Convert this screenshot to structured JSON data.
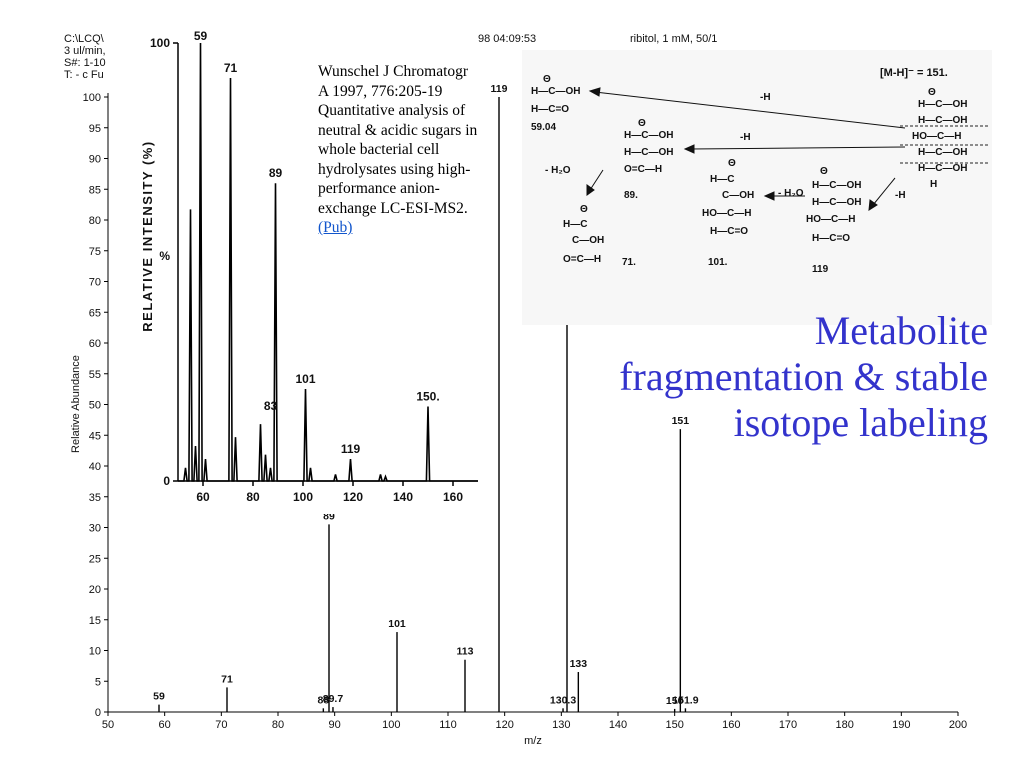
{
  "slide": {
    "title": "Metabolite fragmentation & stable isotope labeling"
  },
  "header": {
    "file": "C:\\LCQ\\",
    "flow": "3 ul/min,",
    "scan": "S#: 1-10",
    "filter": "T: - c Fu",
    "time": "98 04:09:53",
    "sample": "ribitol, 1 mM, 50/1"
  },
  "citation": {
    "text": "Wunschel J Chromatogr A 1997, 776:205-19 Quantitative analysis of neutral & acidic sugars in whole bacterial cell hydrolysates using high-performance anion-exchange LC-ESI-MS2.",
    "link": "(Pub)"
  },
  "structures": {
    "parent": "[M-H]⁻ = 151.",
    "loss_h": "-H",
    "loss_h2o": "- H₂O",
    "labels": [
      "59.04",
      "89.",
      "71.",
      "101.",
      "119"
    ]
  },
  "chart_data": [
    {
      "type": "bar",
      "name": "main-spectrum",
      "xlabel": "m/z",
      "ylabel": "Relative Abundance",
      "xlim": [
        50,
        200
      ],
      "ylim": [
        0,
        100
      ],
      "xticks": [
        50,
        60,
        70,
        80,
        90,
        100,
        110,
        120,
        130,
        140,
        150,
        160,
        170,
        180,
        190,
        200
      ],
      "yticks": [
        0,
        5,
        10,
        15,
        20,
        25,
        30,
        35,
        40,
        45,
        50,
        55,
        60,
        65,
        70,
        75,
        80,
        85,
        90,
        95,
        100
      ],
      "peaks": [
        {
          "x": 59,
          "y": 1.2,
          "label": "59"
        },
        {
          "x": 71,
          "y": 4,
          "label": "71"
        },
        {
          "x": 88,
          "y": 0.6,
          "label": "88"
        },
        {
          "x": 89,
          "y": 30.5,
          "label": "89"
        },
        {
          "x": 89.7,
          "y": 0.8,
          "label": "89.7"
        },
        {
          "x": 101,
          "y": 13,
          "label": "101"
        },
        {
          "x": 113,
          "y": 8.5,
          "label": "113"
        },
        {
          "x": 119,
          "y": 100,
          "label": "119"
        },
        {
          "x": 130.3,
          "y": 0.6,
          "label": "130.3"
        },
        {
          "x": 131,
          "y": 65.5,
          "label": "131"
        },
        {
          "x": 133,
          "y": 6.5,
          "label": "133"
        },
        {
          "x": 150,
          "y": 0.5,
          "label": "150"
        },
        {
          "x": 151,
          "y": 46,
          "label": "151"
        },
        {
          "x": 151.9,
          "y": 0.6,
          "label": "151.9"
        }
      ]
    },
    {
      "type": "line",
      "name": "inset-spectrum",
      "ylabel": "RELATIVE INTENSITY (%)",
      "xlim": [
        50,
        170
      ],
      "ylim": [
        0,
        100
      ],
      "xticks": [
        60,
        80,
        100,
        120,
        140,
        160
      ],
      "yticks": [
        0,
        100
      ],
      "ytick_labels": [
        "0",
        "100"
      ],
      "y_mid_label": "%",
      "peaks": [
        {
          "x": 53,
          "y": 3
        },
        {
          "x": 55,
          "y": 62
        },
        {
          "x": 57,
          "y": 8
        },
        {
          "x": 59,
          "y": 100,
          "label": "59"
        },
        {
          "x": 61,
          "y": 5
        },
        {
          "x": 71,
          "y": 92,
          "label": "71"
        },
        {
          "x": 73,
          "y": 10
        },
        {
          "x": 83,
          "y": 13,
          "label": "83"
        },
        {
          "x": 85,
          "y": 6
        },
        {
          "x": 87,
          "y": 3
        },
        {
          "x": 89,
          "y": 68,
          "label": "89"
        },
        {
          "x": 101,
          "y": 21,
          "label": "101"
        },
        {
          "x": 103,
          "y": 3
        },
        {
          "x": 113,
          "y": 1.5
        },
        {
          "x": 119,
          "y": 5,
          "label": "119"
        },
        {
          "x": 131,
          "y": 1.5
        },
        {
          "x": 133,
          "y": 1
        },
        {
          "x": 150,
          "y": 17,
          "label": "150."
        }
      ]
    }
  ]
}
